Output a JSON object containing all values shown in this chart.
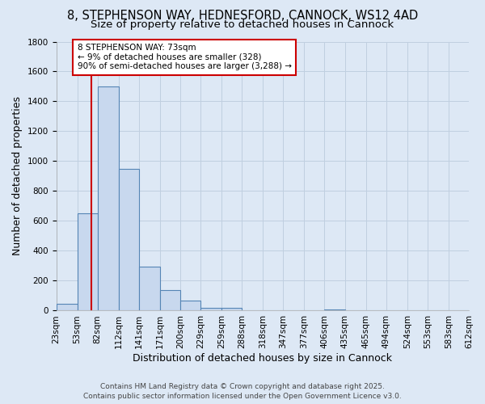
{
  "title_line1": "8, STEPHENSON WAY, HEDNESFORD, CANNOCK, WS12 4AD",
  "title_line2": "Size of property relative to detached houses in Cannock",
  "xlabel": "Distribution of detached houses by size in Cannock",
  "ylabel": "Number of detached properties",
  "bar_edges": [
    23,
    53,
    82,
    112,
    141,
    171,
    200,
    229,
    259,
    288,
    318,
    347,
    377,
    406,
    435,
    465,
    494,
    524,
    553,
    583,
    612
  ],
  "bar_heights": [
    45,
    650,
    1500,
    950,
    295,
    135,
    65,
    20,
    20,
    3,
    3,
    3,
    3,
    10,
    3,
    0,
    0,
    0,
    0,
    0
  ],
  "bar_facecolor": "#c8d8ee",
  "bar_edgecolor": "#5585b5",
  "grid_color": "#c0cfe0",
  "background_color": "#dde8f5",
  "red_line_x": 73,
  "red_line_color": "#cc0000",
  "ylim": [
    0,
    1800
  ],
  "yticks": [
    0,
    200,
    400,
    600,
    800,
    1000,
    1200,
    1400,
    1600,
    1800
  ],
  "annotation_text_line1": "8 STEPHENSON WAY: 73sqm",
  "annotation_text_line2": "← 9% of detached houses are smaller (328)",
  "annotation_text_line3": "90% of semi-detached houses are larger (3,288) →",
  "annotation_box_facecolor": "#ffffff",
  "annotation_box_edgecolor": "#cc0000",
  "footer_line1": "Contains HM Land Registry data © Crown copyright and database right 2025.",
  "footer_line2": "Contains public sector information licensed under the Open Government Licence v3.0.",
  "title_fontsize": 10.5,
  "subtitle_fontsize": 9.5,
  "axis_label_fontsize": 9,
  "tick_fontsize": 7.5,
  "annotation_fontsize": 7.5,
  "footer_fontsize": 6.5
}
